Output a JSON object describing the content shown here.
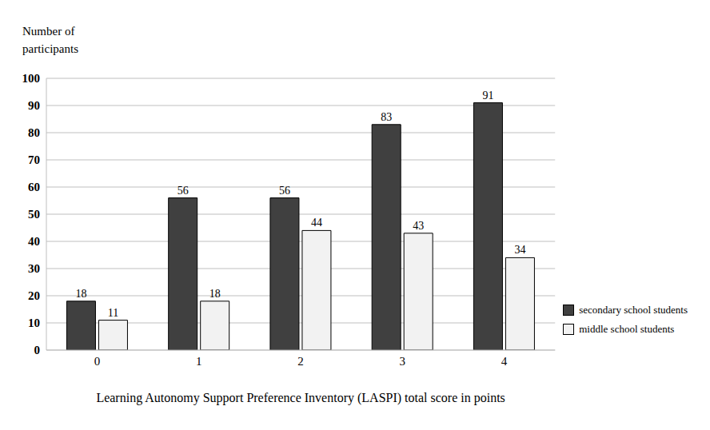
{
  "chart_data": {
    "type": "bar",
    "y_label": "Number of participants",
    "x_label": "Learning  Autonomy  Support Preference Inventory  (LASPI)  total   score in points",
    "categories": [
      "0",
      "1",
      "2",
      "3",
      "4"
    ],
    "series": [
      {
        "name": "secondary school students",
        "color": "#404040",
        "values": [
          18,
          56,
          56,
          83,
          91
        ]
      },
      {
        "name": "middle school students",
        "color": "#f2f2f2",
        "values": [
          11,
          18,
          44,
          43,
          34
        ]
      }
    ],
    "ylim": [
      0,
      100
    ],
    "yticks": [
      0,
      10,
      20,
      30,
      40,
      50,
      60,
      70,
      80,
      90,
      100
    ],
    "grid": true,
    "data_labels": true,
    "legend": "right"
  }
}
